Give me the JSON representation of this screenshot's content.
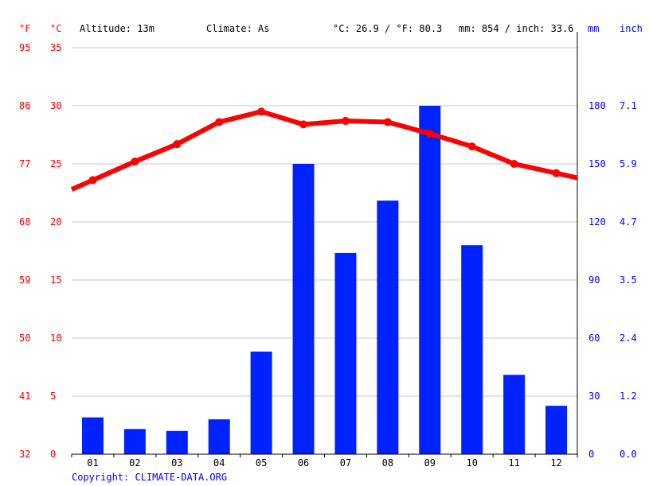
{
  "header": {
    "unit_f": "°F",
    "unit_c": "°C",
    "altitude": "Altitude: 13m",
    "climate": "Climate: As",
    "avg_temp": "°C: 26.9 / °F: 80.3",
    "precip_total": "mm: 854 / inch: 33.6",
    "unit_mm": "mm",
    "unit_inch": "inch"
  },
  "copyright": "Copyright: CLIMATE-DATA.ORG",
  "colors": {
    "temperature": "#ff0000",
    "precipitation": "#0022ff",
    "grid": "#c8c8c8",
    "axis": "#000000"
  },
  "chart_data": {
    "type": "bar+line",
    "categories": [
      "01",
      "02",
      "03",
      "04",
      "05",
      "06",
      "07",
      "08",
      "09",
      "10",
      "11",
      "12"
    ],
    "temp_axis": {
      "unit_left_outer": "°F",
      "unit_left_inner": "°C",
      "range_c": [
        0,
        35
      ],
      "ticks_c": [
        "0",
        "5",
        "10",
        "15",
        "20",
        "25",
        "30",
        "35"
      ],
      "ticks_f": [
        "32",
        "41",
        "50",
        "59",
        "68",
        "77",
        "86",
        "95"
      ]
    },
    "precip_axis": {
      "unit_right_inner": "mm",
      "unit_right_outer": "inch",
      "range_mm": [
        0,
        180
      ],
      "ticks_mm": [
        "0",
        "30",
        "60",
        "90",
        "120",
        "150",
        "180"
      ],
      "ticks_inch": [
        "0.0",
        "1.2",
        "2.4",
        "3.5",
        "4.7",
        "5.9",
        "7.1"
      ]
    },
    "series": [
      {
        "name": "precipitation_mm",
        "kind": "bar",
        "values": [
          19,
          13,
          12,
          18,
          53,
          150,
          104,
          131,
          180,
          108,
          41,
          25
        ]
      },
      {
        "name": "temperature_c",
        "kind": "line",
        "values": [
          23.6,
          25.2,
          26.7,
          28.6,
          29.5,
          28.4,
          28.7,
          28.6,
          27.6,
          26.5,
          25.0,
          24.2
        ]
      }
    ],
    "grid": true
  }
}
